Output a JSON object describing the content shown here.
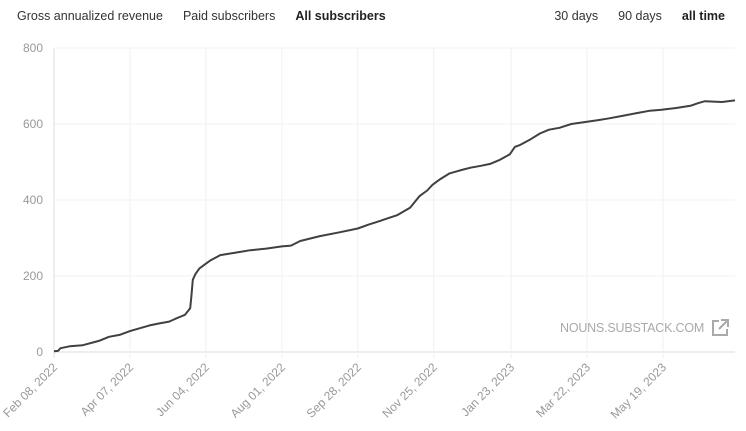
{
  "metric_tabs": [
    {
      "label": "Gross annualized revenue",
      "active": false
    },
    {
      "label": "Paid subscribers",
      "active": false
    },
    {
      "label": "All subscribers",
      "active": true
    }
  ],
  "range_tabs": [
    {
      "label": "30 days",
      "active": false
    },
    {
      "label": "90 days",
      "active": false
    },
    {
      "label": "all time",
      "active": true
    }
  ],
  "watermark": {
    "text": "NOUNS.SUBSTACK.COM",
    "icon": "external-link-icon"
  },
  "chart_data": {
    "type": "line",
    "title": "All subscribers",
    "xlabel": "",
    "ylabel": "",
    "x_unit": "days since Feb 08, 2022",
    "xlim": [
      0,
      520
    ],
    "ylim": [
      0,
      800
    ],
    "y_ticks": [
      0,
      200,
      400,
      600,
      800
    ],
    "x_ticks": [
      {
        "day": 0,
        "label": "Feb 08, 2022"
      },
      {
        "day": 58,
        "label": "Apr 07, 2022"
      },
      {
        "day": 116,
        "label": "Jun 04, 2022"
      },
      {
        "day": 174,
        "label": "Aug 01, 2022"
      },
      {
        "day": 232,
        "label": "Sep 28, 2022"
      },
      {
        "day": 290,
        "label": "Nov 25, 2022"
      },
      {
        "day": 349,
        "label": "Jan 23, 2023"
      },
      {
        "day": 407,
        "label": "Mar 22, 2023"
      },
      {
        "day": 465,
        "label": "May 19, 2023"
      }
    ],
    "grid": true,
    "color": "#404040",
    "series": [
      {
        "name": "All subscribers",
        "x": [
          0,
          3,
          5,
          12,
          22,
          35,
          42,
          50,
          58,
          65,
          73,
          80,
          88,
          93,
          96,
          100,
          104,
          105,
          106,
          108,
          111,
          119,
          127,
          140,
          150,
          162,
          174,
          181,
          188,
          203,
          218,
          232,
          240,
          249,
          262,
          272,
          279,
          285,
          289,
          295,
          302,
          310,
          318,
          326,
          333,
          340,
          348,
          352,
          356,
          364,
          371,
          378,
          386,
          395,
          405,
          415,
          424,
          435,
          447,
          455,
          463,
          475,
          486,
          492,
          497,
          510,
          520
        ],
        "y": [
          2,
          3,
          10,
          15,
          18,
          30,
          40,
          45,
          55,
          62,
          70,
          75,
          80,
          88,
          92,
          98,
          115,
          150,
          190,
          205,
          220,
          240,
          255,
          262,
          268,
          272,
          278,
          280,
          292,
          305,
          315,
          325,
          335,
          345,
          360,
          380,
          410,
          425,
          440,
          455,
          470,
          478,
          485,
          490,
          495,
          505,
          520,
          540,
          545,
          560,
          575,
          585,
          590,
          600,
          605,
          610,
          615,
          622,
          630,
          635,
          637,
          642,
          648,
          655,
          660,
          658,
          662
        ]
      }
    ]
  }
}
